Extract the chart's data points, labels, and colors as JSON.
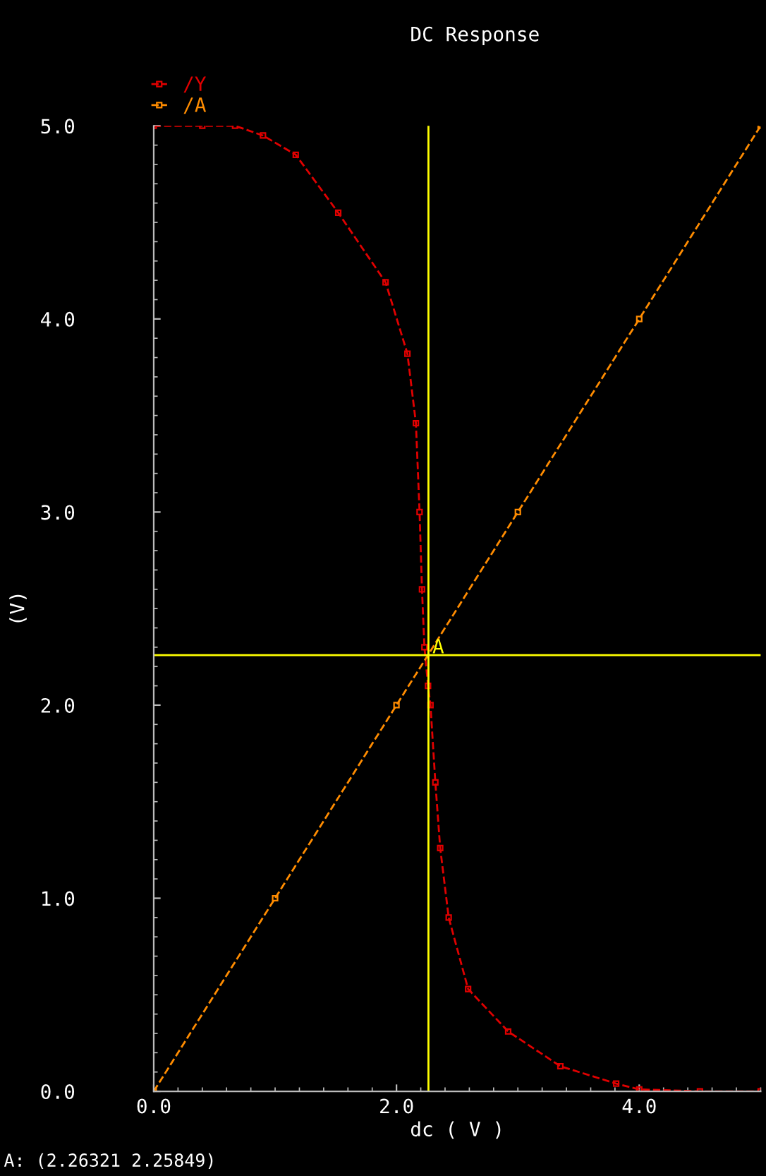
{
  "chart_data": {
    "type": "line",
    "title": "DC Response",
    "xlabel": "dc ( V )",
    "ylabel": "(V)",
    "xlim": [
      0,
      5
    ],
    "ylim": [
      0,
      5
    ],
    "xticks": [
      {
        "value": 0,
        "label": "0.0"
      },
      {
        "value": 2,
        "label": "2.0"
      },
      {
        "value": 4,
        "label": "4.0"
      }
    ],
    "yticks": [
      {
        "value": 0,
        "label": "0.0"
      },
      {
        "value": 1,
        "label": "1.0"
      },
      {
        "value": 2,
        "label": "2.0"
      },
      {
        "value": 3,
        "label": "3.0"
      },
      {
        "value": 4,
        "label": "4.0"
      },
      {
        "value": 5,
        "label": "5.0"
      }
    ],
    "series": [
      {
        "name": "/Y",
        "color": "#e00000",
        "x": [
          0,
          0.4,
          0.67,
          0.9,
          1.17,
          1.52,
          1.91,
          2.09,
          2.16,
          2.19,
          2.21,
          2.23,
          2.26,
          2.28,
          2.32,
          2.36,
          2.43,
          2.59,
          2.92,
          3.35,
          3.81,
          4.0,
          4.5,
          5.0
        ],
        "values": [
          5,
          5,
          5,
          4.95,
          4.85,
          4.55,
          4.19,
          3.82,
          3.46,
          3.0,
          2.6,
          2.3,
          2.1,
          2.0,
          1.6,
          1.26,
          0.9,
          0.53,
          0.31,
          0.13,
          0.04,
          0.01,
          0,
          0
        ]
      },
      {
        "name": "/A",
        "color": "#ff8c00",
        "x": [
          0,
          1,
          2,
          3,
          4,
          5
        ],
        "values": [
          0,
          1,
          2,
          3,
          4,
          5
        ]
      }
    ],
    "ref_lines": [
      {
        "axis": "x",
        "value": 2.26321,
        "label": null,
        "color": "#ffff00"
      },
      {
        "axis": "y",
        "value": 2.25849,
        "label": null,
        "color": "#ffff00"
      }
    ],
    "annotations": [
      {
        "text": "A",
        "x": 2.26321,
        "y": 2.25849
      },
      "A: (2.26321 2.25849)"
    ],
    "legend": "top left",
    "grid": false,
    "marker": "square",
    "line_style": "dashed"
  }
}
